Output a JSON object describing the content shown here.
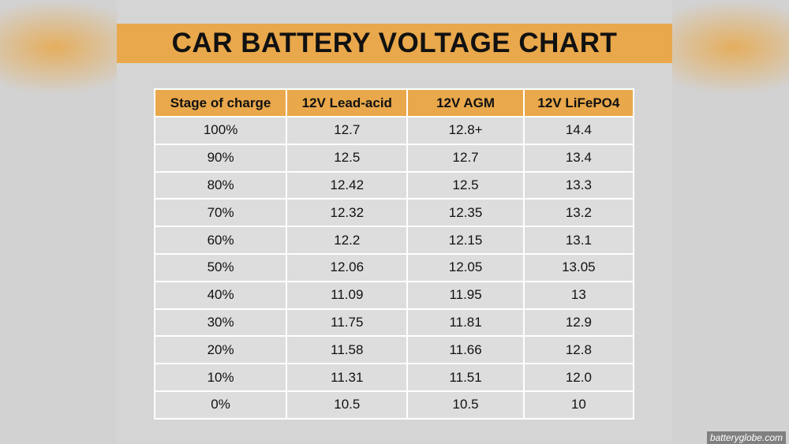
{
  "header": {
    "title": "CAR BATTERY VOLTAGE CHART"
  },
  "table": {
    "columns": [
      "Stage of charge",
      "12V Lead-acid",
      "12V AGM",
      "12V LiFePO4"
    ],
    "rows": [
      [
        "100%",
        "12.7",
        "12.8+",
        "14.4"
      ],
      [
        "90%",
        "12.5",
        "12.7",
        "13.4"
      ],
      [
        "80%",
        "12.42",
        "12.5",
        "13.3"
      ],
      [
        "70%",
        "12.32",
        "12.35",
        "13.2"
      ],
      [
        "60%",
        "12.2",
        "12.15",
        "13.1"
      ],
      [
        "50%",
        "12.06",
        "12.05",
        "13.05"
      ],
      [
        "40%",
        "11.09",
        "11.95",
        "13"
      ],
      [
        "30%",
        "11.75",
        "11.81",
        "12.9"
      ],
      [
        "20%",
        "11.58",
        "11.66",
        "12.8"
      ],
      [
        "10%",
        "11.31",
        "11.51",
        "12.0"
      ],
      [
        "0%",
        "10.5",
        "10.5",
        "10"
      ]
    ]
  },
  "watermark": "batteryglobe.com"
}
